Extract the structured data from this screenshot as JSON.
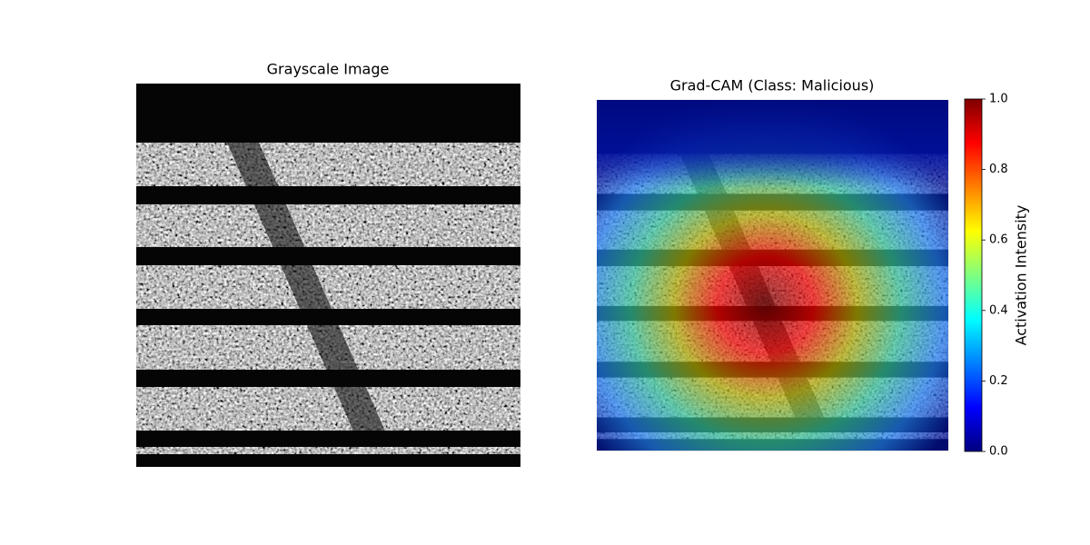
{
  "chart_data": [
    {
      "type": "image",
      "title": "Grayscale Image"
    },
    {
      "type": "heatmap",
      "title": "Grad-CAM (Class: Malicious)",
      "colormap": "jet",
      "colorbar": {
        "label": "Activation Intensity",
        "lim": [
          0,
          1
        ],
        "ticks": [
          {
            "value": 0,
            "label": "0.0"
          },
          {
            "value": 0.2,
            "label": "0.2"
          },
          {
            "value": 0.4,
            "label": "0.4"
          },
          {
            "value": 0.6,
            "label": "0.6"
          },
          {
            "value": 0.8,
            "label": "0.8"
          },
          {
            "value": 1,
            "label": "1.0"
          }
        ]
      }
    }
  ]
}
